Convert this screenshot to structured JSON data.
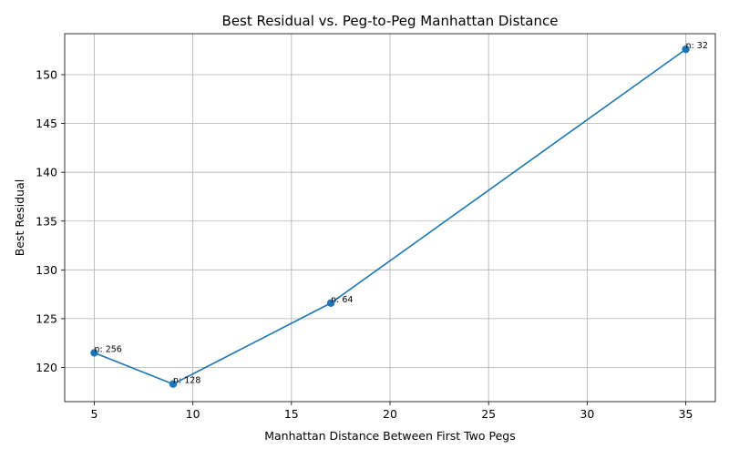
{
  "chart_data": {
    "type": "line",
    "title": "Best Residual vs. Peg-to-Peg Manhattan Distance",
    "xlabel": "Manhattan Distance Between First Two Pegs",
    "ylabel": "Best Residual",
    "xlim": [
      3.5,
      36.5
    ],
    "ylim": [
      116.5,
      154.2
    ],
    "xticks": [
      5,
      10,
      15,
      20,
      25,
      30,
      35
    ],
    "yticks": [
      120,
      125,
      130,
      135,
      140,
      145,
      150
    ],
    "grid": true,
    "series": [
      {
        "color": "#1f77b4",
        "marker": "circle",
        "points": [
          {
            "x": 5,
            "y": 121.5,
            "label": "n: 256"
          },
          {
            "x": 9,
            "y": 118.3,
            "label": "n: 128"
          },
          {
            "x": 17,
            "y": 126.6,
            "label": "n: 64"
          },
          {
            "x": 35,
            "y": 152.6,
            "label": "n: 32"
          }
        ]
      }
    ]
  }
}
